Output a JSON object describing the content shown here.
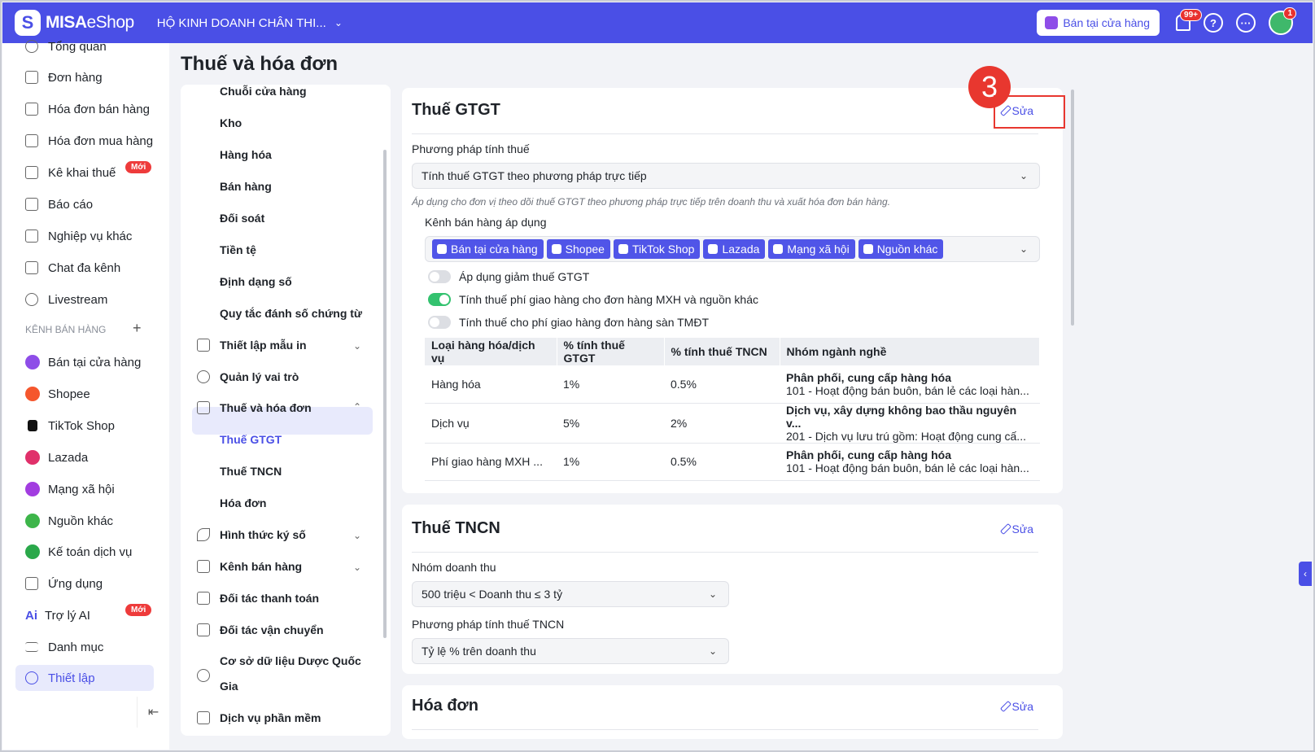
{
  "header": {
    "brand_strong": "MISA",
    "brand_rest": "eShop",
    "store_name": "HỘ KINH DOANH CHÂN THI...",
    "sell_button": "Bán tại cửa hàng",
    "notif_badge": "99+",
    "avatar_badge": "1"
  },
  "leftnav": {
    "items": [
      "Tổng quan",
      "Đơn hàng",
      "Hóa đơn bán hàng",
      "Hóa đơn mua hàng",
      "Kê khai thuế",
      "Báo cáo",
      "Nghiệp vụ khác",
      "Chat đa kênh",
      "Livestream"
    ],
    "new_badge": "Mới",
    "section_label": "KÊNH BÁN HÀNG",
    "channels": [
      "Bán tại cửa hàng",
      "Shopee",
      "TikTok Shop",
      "Lazada",
      "Mạng xã hội",
      "Nguồn khác"
    ],
    "bottom_items": [
      "Kế toán dịch vụ",
      "Ứng dụng",
      "Trợ lý AI",
      "Danh mục",
      "Thiết lập"
    ],
    "ai_label": "Ai"
  },
  "page": {
    "title": "Thuế và hóa đơn"
  },
  "settings_menu": {
    "top_items": [
      "Chuỗi cửa hàng",
      "Kho",
      "Hàng hóa",
      "Bán hàng",
      "Đối soát",
      "Tiền tệ",
      "Định dạng số",
      "Quy tắc đánh số chứng từ"
    ],
    "print_templates": "Thiết lập mẫu in",
    "roles": "Quản lý vai trò",
    "tax_invoice": "Thuế và hóa đơn",
    "sub_items": [
      "Thuế GTGT",
      "Thuế TNCN",
      "Hóa đơn"
    ],
    "digital_sign": "Hình thức ký số",
    "sales_channels": "Kênh bán hàng",
    "payment_partners": "Đối tác thanh toán",
    "shipping_partners": "Đối tác vận chuyển",
    "pharma_db_1": "Cơ sở dữ liệu Dược Quốc",
    "pharma_db_2": "Gia",
    "software": "Dịch vụ phần mềm"
  },
  "vat": {
    "title": "Thuế GTGT",
    "edit": "Sửa",
    "method_label": "Phương pháp tính thuế",
    "method_value": "Tính thuế GTGT theo phương pháp trực tiếp",
    "hint": "Áp dụng cho đơn vị theo dõi thuế GTGT theo phương pháp trực tiếp trên doanh thu và xuất hóa đơn bán hàng.",
    "channels_label": "Kênh bán hàng áp dụng",
    "tags": [
      "Bán tại cửa hàng",
      "Shopee",
      "TikTok Shop",
      "Lazada",
      "Mạng xã hội",
      "Nguồn khác"
    ],
    "toggles": [
      {
        "label": "Áp dụng giảm thuế GTGT",
        "on": false
      },
      {
        "label": "Tính thuế phí giao hàng cho đơn hàng MXH và nguồn khác",
        "on": true
      },
      {
        "label": "Tính thuế cho phí giao hàng đơn hàng sàn TMĐT",
        "on": false
      }
    ],
    "table": {
      "headers": [
        "Loại hàng hóa/dịch vụ",
        "% tính thuế GTGT",
        "% tính thuế TNCN",
        "Nhóm ngành nghề"
      ],
      "rows": [
        {
          "type": "Hàng hóa",
          "vat": "1%",
          "pit": "0.5%",
          "group_title": "Phân phối, cung cấp hàng hóa",
          "group_sub": "101 - Hoạt động bán buôn, bán lẻ các loại hàn..."
        },
        {
          "type": "Dịch vụ",
          "vat": "5%",
          "pit": "2%",
          "group_title": "Dịch vụ, xây dựng không bao thầu nguyên v...",
          "group_sub": "201 - Dịch vụ lưu trú gồm: Hoạt động cung cấ..."
        },
        {
          "type": "Phí giao hàng MXH ...",
          "vat": "1%",
          "pit": "0.5%",
          "group_title": "Phân phối, cung cấp hàng hóa",
          "group_sub": "101 - Hoạt động bán buôn, bán lẻ các loại hàn..."
        }
      ]
    }
  },
  "pit": {
    "title": "Thuế TNCN",
    "edit": "Sửa",
    "revenue_label": "Nhóm doanh thu",
    "revenue_value": "500 triệu < Doanh thu ≤ 3 tỷ",
    "method_label": "Phương pháp tính thuế TNCN",
    "method_value": "Tỷ lệ % trên doanh thu"
  },
  "invoice": {
    "title": "Hóa đơn",
    "edit": "Sửa"
  },
  "annotation": {
    "step": "3",
    "color": "#e8372f"
  }
}
